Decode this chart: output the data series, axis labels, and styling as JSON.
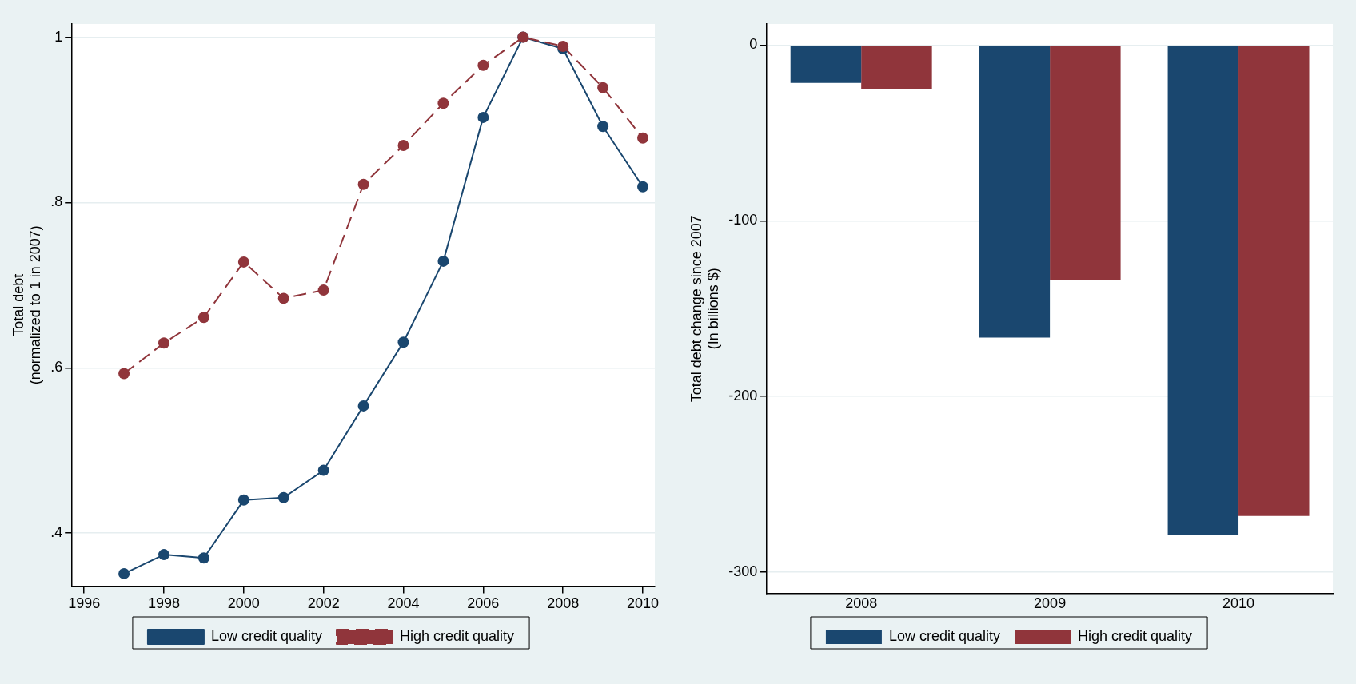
{
  "chart_data": [
    {
      "type": "line",
      "ylabel": "Total debt\n(normalized to 1 in 2007)",
      "x": [
        1997,
        1998,
        1999,
        2000,
        2001,
        2002,
        2003,
        2004,
        2005,
        2006,
        2007,
        2008,
        2009,
        2010
      ],
      "series": [
        {
          "name": "Low credit quality",
          "color": "#1a476f",
          "line_style": "solid",
          "values": [
            0.351,
            0.374,
            0.37,
            0.44,
            0.443,
            0.476,
            0.554,
            0.631,
            0.729,
            0.903,
            1.0,
            0.986,
            0.892,
            0.819
          ]
        },
        {
          "name": "High credit quality",
          "color": "#90353b",
          "line_style": "dashed",
          "values": [
            0.593,
            0.63,
            0.661,
            0.728,
            0.684,
            0.694,
            0.822,
            0.869,
            0.92,
            0.966,
            1.0,
            0.989,
            0.939,
            0.878
          ]
        }
      ],
      "xlim": [
        1995.7,
        2010.3
      ],
      "xticks": [
        1996,
        1998,
        2000,
        2002,
        2004,
        2006,
        2008,
        2010
      ],
      "ylim": [
        0.336,
        1.016
      ],
      "yticks": [
        {
          "value": 0.4,
          "label": ".4"
        },
        {
          "value": 0.6,
          "label": ".6"
        },
        {
          "value": 0.8,
          "label": ".8"
        },
        {
          "value": 1,
          "label": "1"
        }
      ],
      "grid": "y",
      "legend": "bottom",
      "marker": "circle"
    },
    {
      "type": "bar",
      "ylabel": "Total debt change since 2007\n(In billions $)",
      "categories": [
        "2008",
        "2009",
        "2010"
      ],
      "series": [
        {
          "name": "Low credit quality",
          "color": "#1a476f",
          "values": [
            -21.5,
            -166.5,
            -279
          ]
        },
        {
          "name": "High credit quality",
          "color": "#90353b",
          "values": [
            -25,
            -134,
            -268
          ]
        }
      ],
      "ylim": [
        -312,
        12
      ],
      "yticks": [
        -300,
        -200,
        -100,
        0
      ],
      "grid": "y",
      "legend": "bottom"
    }
  ]
}
